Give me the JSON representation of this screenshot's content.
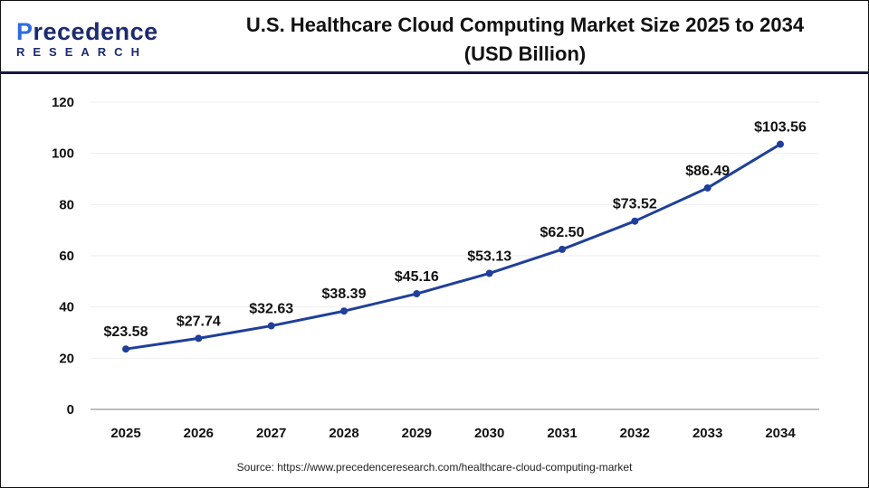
{
  "logo": {
    "top": "Precedence",
    "bottom": "RESEARCH"
  },
  "chart_data": {
    "type": "line",
    "title": "U.S. Healthcare Cloud Computing Market Size 2025 to 2034 (USD Billion)",
    "title_line1": "U.S. Healthcare Cloud Computing Market Size 2025 to 2034",
    "title_line2": "(USD Billion)",
    "categories": [
      "2025",
      "2026",
      "2027",
      "2028",
      "2029",
      "2030",
      "2031",
      "2032",
      "2033",
      "2034"
    ],
    "values": [
      23.58,
      27.74,
      32.63,
      38.39,
      45.16,
      53.13,
      62.5,
      73.52,
      86.49,
      103.56
    ],
    "data_labels": [
      "$23.58",
      "$27.74",
      "$32.63",
      "$38.39",
      "$45.16",
      "$53.13",
      "$62.50",
      "$73.52",
      "$86.49",
      "$103.56"
    ],
    "ylim": [
      0,
      120
    ],
    "yticks": [
      0,
      20,
      40,
      60,
      80,
      100,
      120
    ],
    "grid": true,
    "xlabel": "",
    "ylabel": "",
    "line_color": "#1f3f9a"
  },
  "source": "Source: https://www.precedenceresearch.com/healthcare-cloud-computing-market"
}
